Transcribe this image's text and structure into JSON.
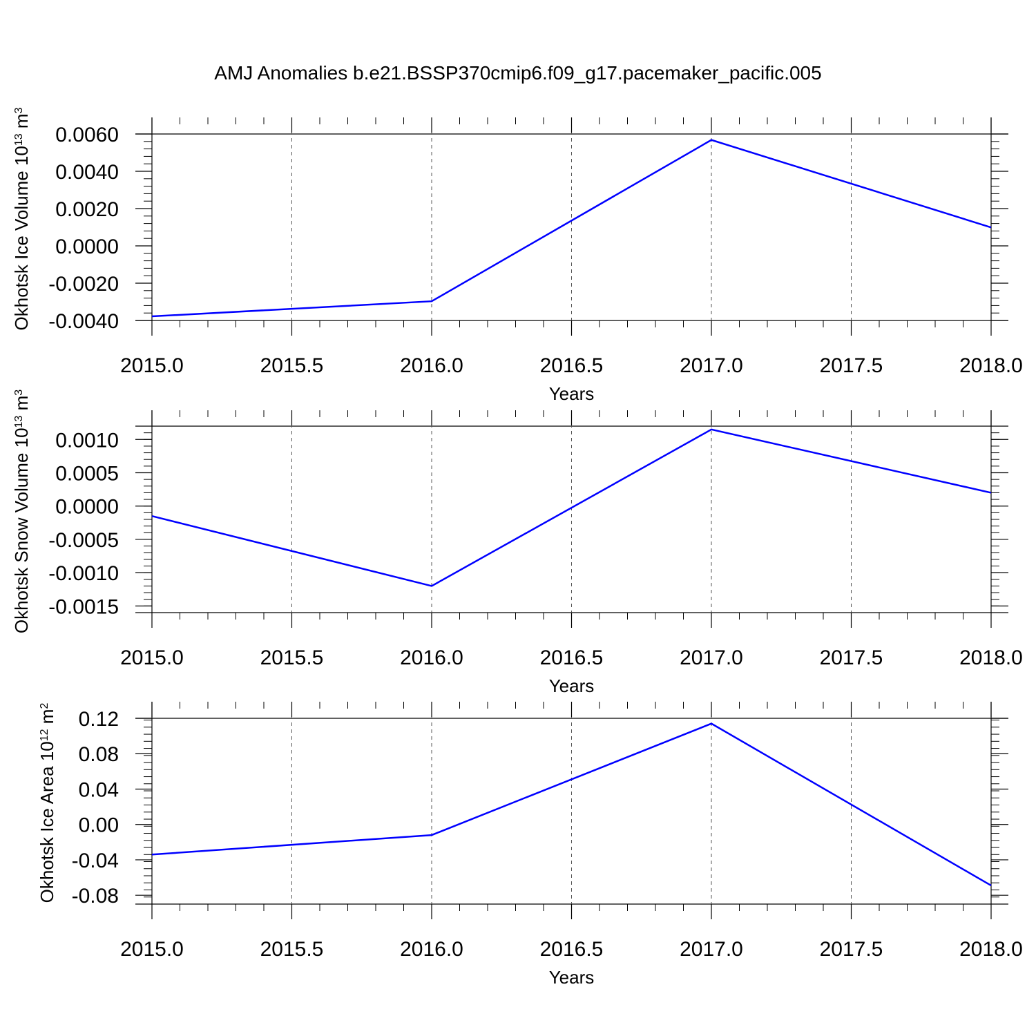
{
  "title": "AMJ Anomalies b.e21.BSSP370cmip6.f09_g17.pacemaker_pacific.005",
  "line_color": "#0000ff",
  "chart_data": [
    {
      "type": "line",
      "x": [
        2015,
        2016,
        2017,
        2018
      ],
      "values": [
        -0.00378,
        -0.00297,
        0.00568,
        0.00099
      ],
      "xlabel": "Years",
      "ylabel": {
        "text": "Okhotsk Ice Volume 10",
        "exp": "13",
        "unit": " m",
        "unit_exp": "3"
      },
      "xlim": [
        2015,
        2018
      ],
      "ylim": [
        -0.004,
        0.006
      ],
      "xticks": [
        2015.0,
        2015.5,
        2016.0,
        2016.5,
        2017.0,
        2017.5,
        2018.0
      ],
      "xtick_labels": [
        "2015.0",
        "2015.5",
        "2016.0",
        "2016.5",
        "2017.0",
        "2017.5",
        "2018.0"
      ],
      "yticks": [
        -0.004,
        -0.002,
        0.0,
        0.002,
        0.004,
        0.006
      ],
      "ytick_labels": [
        "-0.0040",
        "-0.0020",
        "0.0000",
        "0.0020",
        "0.0040",
        "0.0060"
      ],
      "grid": "vertical dashed"
    },
    {
      "type": "line",
      "x": [
        2015,
        2016,
        2017,
        2018
      ],
      "values": [
        -0.00015,
        -0.0012,
        0.00115,
        0.0002
      ],
      "xlabel": "Years",
      "ylabel": {
        "text": "Okhotsk Snow Volume 10",
        "exp": "13",
        "unit": " m",
        "unit_exp": "3"
      },
      "xlim": [
        2015,
        2018
      ],
      "ylim": [
        -0.0016,
        0.0012
      ],
      "xticks": [
        2015.0,
        2015.5,
        2016.0,
        2016.5,
        2017.0,
        2017.5,
        2018.0
      ],
      "xtick_labels": [
        "2015.0",
        "2015.5",
        "2016.0",
        "2016.5",
        "2017.0",
        "2017.5",
        "2018.0"
      ],
      "yticks": [
        -0.0015,
        -0.001,
        -0.0005,
        0.0,
        0.0005,
        0.001
      ],
      "ytick_labels": [
        "-0.0015",
        "-0.0010",
        "-0.0005",
        "0.0000",
        "0.0005",
        "0.0010"
      ],
      "grid": "vertical dashed"
    },
    {
      "type": "line",
      "x": [
        2015,
        2016,
        2017,
        2018
      ],
      "values": [
        -0.034,
        -0.012,
        0.114,
        -0.069
      ],
      "xlabel": "Years",
      "ylabel": {
        "text": "Okhotsk Ice Area 10",
        "exp": "12",
        "unit": " m",
        "unit_exp": "2"
      },
      "xlim": [
        2015,
        2018
      ],
      "ylim": [
        -0.09,
        0.12
      ],
      "xticks": [
        2015.0,
        2015.5,
        2016.0,
        2016.5,
        2017.0,
        2017.5,
        2018.0
      ],
      "xtick_labels": [
        "2015.0",
        "2015.5",
        "2016.0",
        "2016.5",
        "2017.0",
        "2017.5",
        "2018.0"
      ],
      "yticks": [
        -0.08,
        -0.04,
        0.0,
        0.04,
        0.08,
        0.12
      ],
      "ytick_labels": [
        "-0.08",
        "-0.04",
        "0.00",
        "0.04",
        "0.08",
        "0.12"
      ],
      "grid": "vertical dashed"
    }
  ]
}
